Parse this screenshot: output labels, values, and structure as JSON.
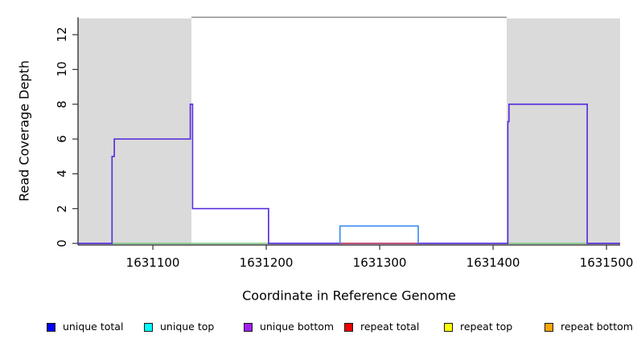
{
  "chart_data": {
    "type": "line",
    "title": "",
    "xlabel": "Coordinate in Reference Genome",
    "ylabel": "Read Coverage Depth",
    "xlim": [
      1631034,
      1631512
    ],
    "ylim": [
      0,
      13
    ],
    "x_ticks": [
      1631100,
      1631200,
      1631300,
      1631400,
      1631500
    ],
    "y_ticks": [
      0,
      2,
      4,
      6,
      8,
      10,
      12
    ],
    "grid": false,
    "legend_position": "bottom",
    "shaded_regions": [
      {
        "name": "repeat-region-left",
        "x0": 1631034,
        "x1": 1631134,
        "color": "#dadada"
      },
      {
        "name": "repeat-region-right",
        "x0": 1631412,
        "x1": 1631512,
        "color": "#dadada"
      }
    ],
    "top_clip_line": {
      "x0": 1631134,
      "x1": 1631412,
      "y": 13,
      "color": "#8c8c8c",
      "width": 1.6
    },
    "series": [
      {
        "name": "baseline-left-segment",
        "color": "#76c67a",
        "width": 1.4,
        "points": [
          [
            1631064,
            0
          ],
          [
            1631202,
            0
          ]
        ]
      },
      {
        "name": "baseline-right-segment",
        "color": "#76c67a",
        "width": 1.4,
        "points": [
          [
            1631413,
            0
          ],
          [
            1631483,
            0
          ]
        ]
      },
      {
        "name": "unique-bottom-coverage",
        "color": "#5b30dd",
        "width": 1.7,
        "points": [
          [
            1631034,
            0
          ],
          [
            1631064,
            0
          ],
          [
            1631064,
            5
          ],
          [
            1631066,
            5
          ],
          [
            1631066,
            6
          ],
          [
            1631133,
            6
          ],
          [
            1631133,
            8
          ],
          [
            1631135,
            8
          ],
          [
            1631135,
            2
          ],
          [
            1631202,
            2
          ],
          [
            1631202,
            0
          ],
          [
            1631413,
            0
          ],
          [
            1631413,
            7
          ],
          [
            1631414,
            7
          ],
          [
            1631414,
            8
          ],
          [
            1631483,
            8
          ],
          [
            1631483,
            0
          ],
          [
            1631512,
            0
          ]
        ]
      },
      {
        "name": "repeat-total-baseline",
        "color": "#d9505e",
        "width": 1.4,
        "points": [
          [
            1631265,
            0
          ],
          [
            1631333,
            0
          ]
        ]
      },
      {
        "name": "unique-top-box",
        "color": "#4090f0",
        "width": 1.7,
        "points": [
          [
            1631265,
            0
          ],
          [
            1631265,
            1
          ],
          [
            1631334,
            1
          ],
          [
            1631334,
            0
          ]
        ]
      }
    ],
    "legend": [
      {
        "label": "unique total",
        "color": "#0000ff"
      },
      {
        "label": "unique top",
        "color": "#00ffff"
      },
      {
        "label": "unique bottom",
        "color": "#a020f0"
      },
      {
        "label": "repeat total",
        "color": "#ee0000"
      },
      {
        "label": "repeat top",
        "color": "#ffff00"
      },
      {
        "label": "repeat bottom",
        "color": "#ffa500"
      }
    ]
  }
}
